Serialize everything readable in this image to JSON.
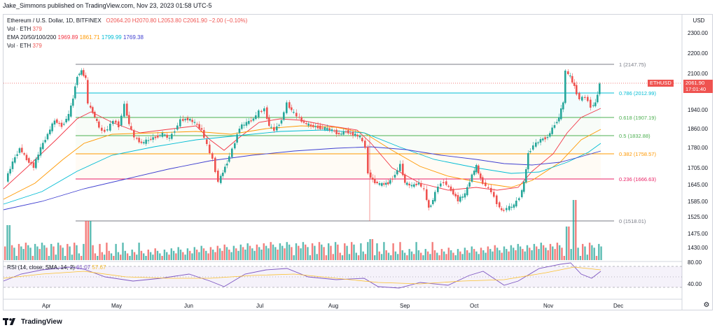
{
  "header": {
    "meta": "Jake_Simmons published on TradingView.com, Nov 23, 2023 01:58 UTC-5"
  },
  "legend": {
    "symbol": "Ethereum / U.S. Dollar, 1D, BITFINEX",
    "ohlc": "O2064.20  H2070.80  L2053.80  C2061.90  −2.00 (−0.10%)",
    "vol1_label": "Vol · ETH",
    "vol1_value": "379",
    "ema_label": "EMA 20/50/100/200",
    "ema20": "1969.89",
    "ema50": "1861.71",
    "ema100": "1799.99",
    "ema200": "1769.38",
    "vol2_label": "Vol · ETH",
    "vol2_value": "379",
    "rsi_label": "RSI (14, close, SMA, 14, 2)",
    "rsi_value": "61.07",
    "rsi_ma": "57.67"
  },
  "axis": {
    "currency": "USD",
    "price_ticks": [
      "2300.00",
      "2200.00",
      "2100.00",
      "1940.00",
      "1860.00",
      "1780.00",
      "1705.00",
      "1645.00",
      "1585.00",
      "1525.00",
      "1475.00",
      "1430.00"
    ],
    "rsi_ticks": [
      "80.00",
      "40.00"
    ],
    "time_ticks": [
      "Apr",
      "May",
      "Jun",
      "Jul",
      "Aug",
      "Sep",
      "Oct",
      "Nov",
      "Dec"
    ]
  },
  "price_tag": {
    "symbol": "ETHUSD",
    "price": "2061.90",
    "countdown": "17:01:40"
  },
  "fib": [
    {
      "label": "1 (2147.75)",
      "color": "#787b86"
    },
    {
      "label": "0.786 (2012.99)",
      "color": "#00bcd4"
    },
    {
      "label": "0.618 (1907.19)",
      "color": "#4caf50"
    },
    {
      "label": "0.5 (1832.88)",
      "color": "#4caf50"
    },
    {
      "label": "0.382 (1758.57)",
      "color": "#ff9800"
    },
    {
      "label": "0.236 (1666.63)",
      "color": "#e91e63"
    },
    {
      "label": "0 (1518.01)",
      "color": "#787b86"
    }
  ],
  "colors": {
    "up": "#26a69a",
    "down": "#ef5350",
    "ema20": "#f23645",
    "ema50": "#ff9800",
    "ema100": "#00bcd4",
    "ema200": "#3f3fd0",
    "rsi": "#7e57c2",
    "rsi_ma": "#fbc02d"
  },
  "footer": {
    "brand": "TradingView"
  }
}
